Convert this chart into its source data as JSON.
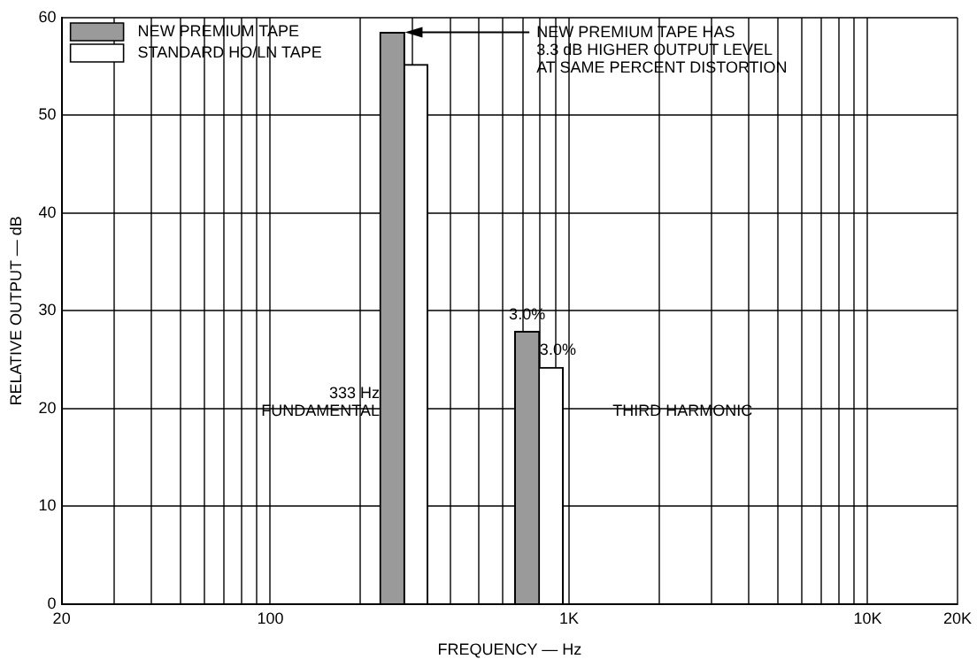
{
  "chart_data": {
    "type": "bar",
    "xlabel": "FREQUENCY — Hz",
    "ylabel": "RELATIVE OUTPUT — dB",
    "series": [
      {
        "name": "NEW PREMIUM TAPE",
        "color": "#9a9a9a",
        "x": [
          256,
          724
        ],
        "values": [
          58.5,
          27.9
        ]
      },
      {
        "name": "STANDARD HO/LN TAPE",
        "color": "#ffffff",
        "x": [
          306,
          869
        ],
        "values": [
          55.2,
          24.2
        ]
      }
    ],
    "log": "x",
    "xlim": [
      20,
      20000
    ],
    "xticks": [
      20,
      {
        "value": 30,
        "label": null
      },
      {
        "value": 40,
        "label": null
      },
      {
        "value": 50,
        "label": null
      },
      {
        "value": 60,
        "label": null
      },
      {
        "value": 70,
        "label": null
      },
      {
        "value": 80,
        "label": null
      },
      {
        "value": 90,
        "label": null
      },
      100,
      {
        "value": 200,
        "label": null
      },
      {
        "value": 300,
        "label": null
      },
      {
        "value": 400,
        "label": null
      },
      {
        "value": 500,
        "label": null
      },
      {
        "value": 600,
        "label": null
      },
      {
        "value": 700,
        "label": null
      },
      {
        "value": 800,
        "label": null
      },
      {
        "value": 900,
        "label": null
      },
      {
        "value": 1000,
        "label": "1K"
      },
      {
        "value": 2000,
        "label": null
      },
      {
        "value": 3000,
        "label": null
      },
      {
        "value": 4000,
        "label": null
      },
      {
        "value": 5000,
        "label": null
      },
      {
        "value": 6000,
        "label": null
      },
      {
        "value": 7000,
        "label": null
      },
      {
        "value": 8000,
        "label": null
      },
      {
        "value": 9000,
        "label": null
      },
      {
        "value": 10000,
        "label": "10K"
      },
      {
        "value": 20000,
        "label": "20K"
      }
    ],
    "ylim": [
      0,
      60
    ],
    "yticks": [
      0,
      10,
      20,
      30,
      40,
      50,
      60
    ],
    "grid": true,
    "legend": "top left",
    "annotations": [
      "333 Hz\nFUNDAMENTAL",
      "THIRD HARMONIC",
      {
        "text": "3.0%",
        "x": 724,
        "y": 27.9
      },
      {
        "text": "3.0%",
        "x": 869,
        "y": 24.2
      },
      {
        "text": "NEW PREMIUM TAPE HAS\n3.3 dB HIGHER OUTPUT LEVEL\nAT SAME PERCENT DISTORTION",
        "x": 282,
        "y": 58.5
      }
    ]
  }
}
